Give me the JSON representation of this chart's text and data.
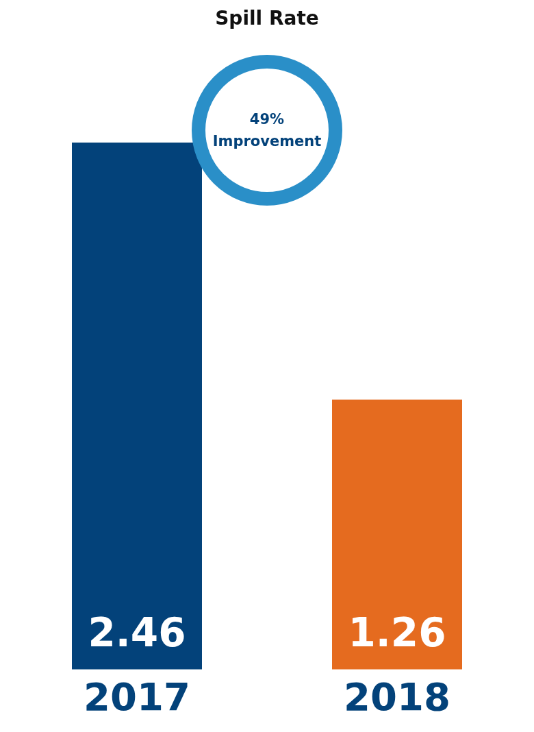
{
  "chart_data": {
    "type": "bar",
    "title": "Spill Rate",
    "categories": [
      "2017",
      "2018"
    ],
    "values": [
      2.46,
      1.26
    ],
    "colors": [
      "#03427a",
      "#e56b1f"
    ],
    "data_labels": true,
    "grid": false,
    "legend": false,
    "tick_labels": "x",
    "annotations": [
      "49% Improvement"
    ]
  }
}
